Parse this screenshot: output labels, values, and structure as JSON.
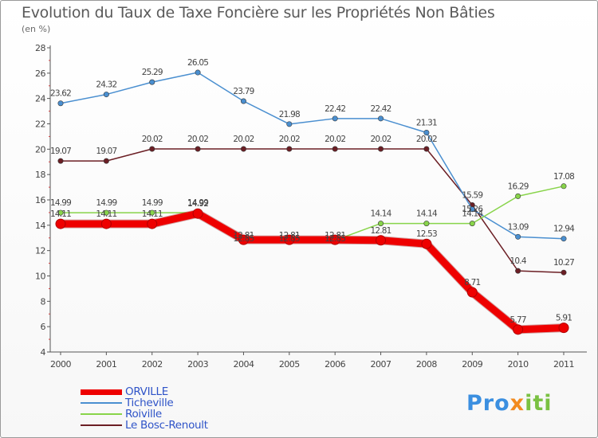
{
  "header": {
    "title": "Evolution du Taux de Taxe Foncière sur les Propriétés Non Bâties",
    "unit": "(en %)"
  },
  "logo": {
    "text": "Proxiti",
    "parts": [
      "Pro",
      "x",
      "iti"
    ]
  },
  "chart_data": {
    "type": "line",
    "title": "Evolution du Taux de Taxe Foncière sur les Propriétés Non Bâties",
    "ylabel": "(en %)",
    "xlabel": "",
    "ylim": [
      4,
      28
    ],
    "yticks": [
      4,
      6,
      8,
      10,
      12,
      14,
      16,
      18,
      20,
      22,
      24,
      26,
      28
    ],
    "grid": false,
    "legend": "bottom-left",
    "x": [
      "2000",
      "2001",
      "2002",
      "2003",
      "2004",
      "2005",
      "2006",
      "2007",
      "2008",
      "2009",
      "2010",
      "2011"
    ],
    "series": [
      {
        "name": "ORVILLE",
        "color": "#ee0000",
        "emphasis": "thick",
        "values": [
          14.11,
          14.11,
          14.11,
          14.92,
          12.85,
          12.85,
          12.85,
          12.81,
          12.53,
          8.71,
          5.77,
          5.91
        ],
        "labels": [
          "14.11",
          "14.11",
          "14.11",
          "14.92",
          "12.85",
          "12.85",
          "12.85",
          "12.81",
          "12.53",
          "8.71",
          "5.77",
          "5.91"
        ]
      },
      {
        "name": "Ticheville",
        "color": "#4a8fd0",
        "values": [
          23.62,
          24.32,
          25.29,
          26.05,
          23.79,
          21.98,
          22.42,
          22.42,
          21.31,
          15.26,
          13.09,
          12.94
        ],
        "labels": [
          "23.62",
          "24.32",
          "25.29",
          "26.05",
          "23.79",
          "21.98",
          "22.42",
          "22.42",
          "21.31",
          "15.26",
          "13.09",
          "12.94"
        ]
      },
      {
        "name": "Roiville",
        "color": "#88d44a",
        "values": [
          14.99,
          14.99,
          14.99,
          14.99,
          12.81,
          12.81,
          12.81,
          14.14,
          14.14,
          14.14,
          16.29,
          17.08
        ],
        "labels": [
          "14.99",
          "14.99",
          "14.99",
          "14.99",
          "12.81",
          "12.81",
          "12.81",
          "14.14",
          "14.14",
          "14.14",
          "16.29",
          "17.08"
        ]
      },
      {
        "name": "Le Bosc-Renoult",
        "color": "#6b1e24",
        "values": [
          19.07,
          19.07,
          20.02,
          20.02,
          20.02,
          20.02,
          20.02,
          20.02,
          20.02,
          15.59,
          10.4,
          10.27
        ],
        "labels": [
          "19.07",
          "19.07",
          "20.02",
          "20.02",
          "20.02",
          "20.02",
          "20.02",
          "20.02",
          "20.02",
          "15.59",
          "10.4",
          "10.27"
        ]
      }
    ]
  }
}
